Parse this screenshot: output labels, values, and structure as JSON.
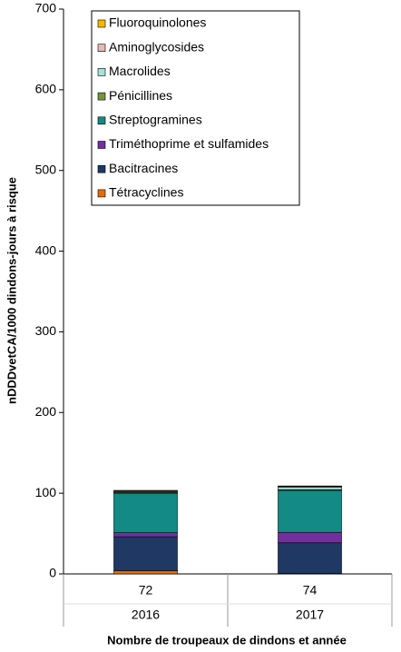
{
  "chart_data": {
    "type": "stacked-bar",
    "y_label": "nDDDvetCA/1000 dindons-jours à risque",
    "x_label": "Nombre de troupeaux de dindons et année",
    "categories": [
      "72",
      "74"
    ],
    "category_groups": [
      "2016",
      "2017"
    ],
    "ylim": [
      0,
      700
    ],
    "yticks": [
      0,
      100,
      200,
      300,
      400,
      500,
      600,
      700
    ],
    "legend": "top-left",
    "series": [
      {
        "name": "Tétracyclines",
        "color": "#e46c0a",
        "values": [
          4,
          0.5
        ]
      },
      {
        "name": "Bacitracines",
        "color": "#1f3864",
        "values": [
          42,
          38
        ]
      },
      {
        "name": "Triméthoprime et sulfamides",
        "color": "#7030a0",
        "values": [
          5,
          13
        ]
      },
      {
        "name": "Streptogramines",
        "color": "#138a86",
        "values": [
          49,
          52
        ]
      },
      {
        "name": "Pénicillines",
        "color": "#77933c",
        "values": [
          1,
          1
        ]
      },
      {
        "name": "Macrolides",
        "color": "#a6e3d7",
        "values": [
          1,
          3
        ]
      },
      {
        "name": "Aminoglycosides",
        "color": "#e6b9b8",
        "values": [
          1,
          1
        ]
      },
      {
        "name": "Fluoroquinolones",
        "color": "#f5b800",
        "values": [
          0.5,
          0.5
        ]
      }
    ]
  }
}
